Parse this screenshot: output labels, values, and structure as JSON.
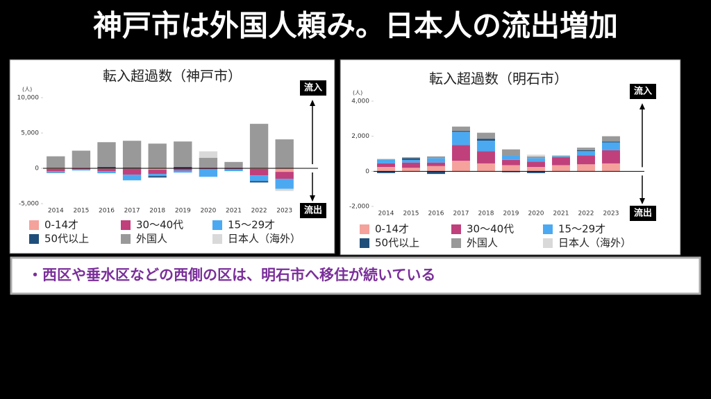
{
  "title": "神戸市は外国人頼み。日本人の流出増加",
  "note": "・西区や垂水区などの西側の区は、明石市へ移住が続いている",
  "chart_data": [
    {
      "type": "bar",
      "stacked": true,
      "title": "転入超過数（神戸市）",
      "y_unit": "(人)",
      "annotations": [
        "流入",
        "流出"
      ],
      "categories": [
        "2014",
        "2015",
        "2016",
        "2017",
        "2018",
        "2019",
        "2020",
        "2021",
        "2022",
        "2023"
      ],
      "series": [
        {
          "name": "0-14才",
          "color": "#f4a29b",
          "values": [
            -100,
            100,
            -100,
            -100,
            -200,
            0,
            0,
            0,
            -100,
            -500
          ]
        },
        {
          "name": "30〜40代",
          "color": "#c0407b",
          "values": [
            -300,
            -100,
            -300,
            -800,
            -600,
            -300,
            -100,
            -100,
            -900,
            -1000
          ]
        },
        {
          "name": "15〜29才",
          "color": "#4ba9f2",
          "values": [
            -200,
            -200,
            -300,
            -800,
            -300,
            -300,
            -1100,
            -300,
            -800,
            -1400
          ]
        },
        {
          "name": "50代以上",
          "color": "#1f4e7a",
          "values": [
            -50,
            0,
            200,
            100,
            -200,
            200,
            0,
            0,
            -200,
            0
          ]
        },
        {
          "name": "外国人",
          "color": "#999999",
          "values": [
            1700,
            2400,
            3500,
            3800,
            3500,
            3600,
            1500,
            900,
            6300,
            4100
          ]
        },
        {
          "name": "日本人（海外）",
          "color": "#d9d9d9",
          "values": [
            0,
            0,
            0,
            0,
            0,
            0,
            900,
            0,
            0,
            -300
          ]
        }
      ],
      "ylim": [
        -5000,
        10000
      ],
      "yticks": [
        {
          "value": -5000,
          "label": "-5,000"
        },
        0,
        {
          "value": 5000,
          "label": "5,000"
        },
        {
          "value": 10000,
          "label": "10,000"
        }
      ]
    },
    {
      "type": "bar",
      "stacked": true,
      "title": "転入超過数（明石市）",
      "y_unit": "(人)",
      "annotations": [
        "流入",
        "流出"
      ],
      "categories": [
        "2014",
        "2015",
        "2016",
        "2017",
        "2018",
        "2019",
        "2020",
        "2021",
        "2022",
        "2023"
      ],
      "series": [
        {
          "name": "0-14才",
          "color": "#f4a29b",
          "values": [
            250,
            200,
            300,
            600,
            450,
            350,
            250,
            350,
            400,
            450
          ]
        },
        {
          "name": "30〜40代",
          "color": "#c0407b",
          "values": [
            200,
            300,
            200,
            900,
            700,
            300,
            300,
            450,
            500,
            750
          ]
        },
        {
          "name": "15〜29才",
          "color": "#4ba9f2",
          "values": [
            200,
            150,
            250,
            750,
            600,
            250,
            200,
            50,
            250,
            450
          ]
        },
        {
          "name": "50代以上",
          "color": "#1f4e7a",
          "values": [
            -100,
            100,
            -150,
            50,
            100,
            -50,
            -100,
            0,
            50,
            50
          ]
        },
        {
          "name": "外国人",
          "color": "#999999",
          "values": [
            50,
            50,
            100,
            250,
            350,
            350,
            100,
            50,
            150,
            300
          ]
        },
        {
          "name": "日本人（海外）",
          "color": "#d9d9d9",
          "values": [
            0,
            0,
            0,
            0,
            0,
            0,
            100,
            0,
            0,
            0
          ]
        }
      ],
      "ylim": [
        -2000,
        4000
      ],
      "yticks": [
        {
          "value": -2000,
          "label": "-2,000"
        },
        0,
        {
          "value": 2000,
          "label": "2,000"
        },
        {
          "value": 4000,
          "label": "4,000"
        }
      ]
    }
  ]
}
